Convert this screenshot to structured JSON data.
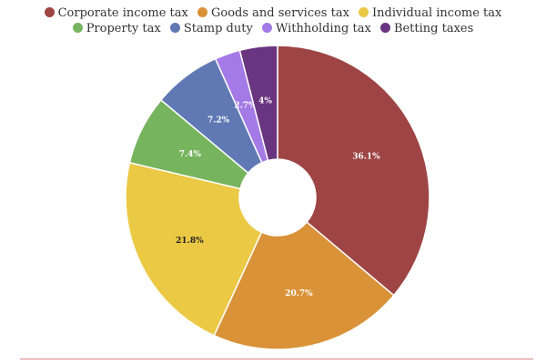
{
  "chart_data": {
    "type": "pie",
    "donut": true,
    "legend_position": "top",
    "slices": [
      {
        "label": "Corporate income tax",
        "value": 36.1,
        "display": "36.1%",
        "color": "#9e4444",
        "label_color": "#ffffff"
      },
      {
        "label": "Goods and services tax",
        "value": 20.7,
        "display": "20.7%",
        "color": "#d99238",
        "label_color": "#ffffff"
      },
      {
        "label": "Individual income tax",
        "value": 21.8,
        "display": "21.8%",
        "color": "#ebc945",
        "label_color": "#222222"
      },
      {
        "label": "Property tax",
        "value": 7.4,
        "display": "7.4%",
        "color": "#77b45e",
        "label_color": "#ffffff"
      },
      {
        "label": "Stamp duty",
        "value": 7.2,
        "display": "7.2%",
        "color": "#6079b4",
        "label_color": "#ffffff"
      },
      {
        "label": "Withholding tax",
        "value": 2.7,
        "display": "2.7%",
        "color": "#a47ae6",
        "label_color": "#ffffff"
      },
      {
        "label": "Betting taxes",
        "value": 4,
        "display": "4%",
        "color": "#6a3580",
        "label_color": "#ffffff"
      }
    ]
  }
}
